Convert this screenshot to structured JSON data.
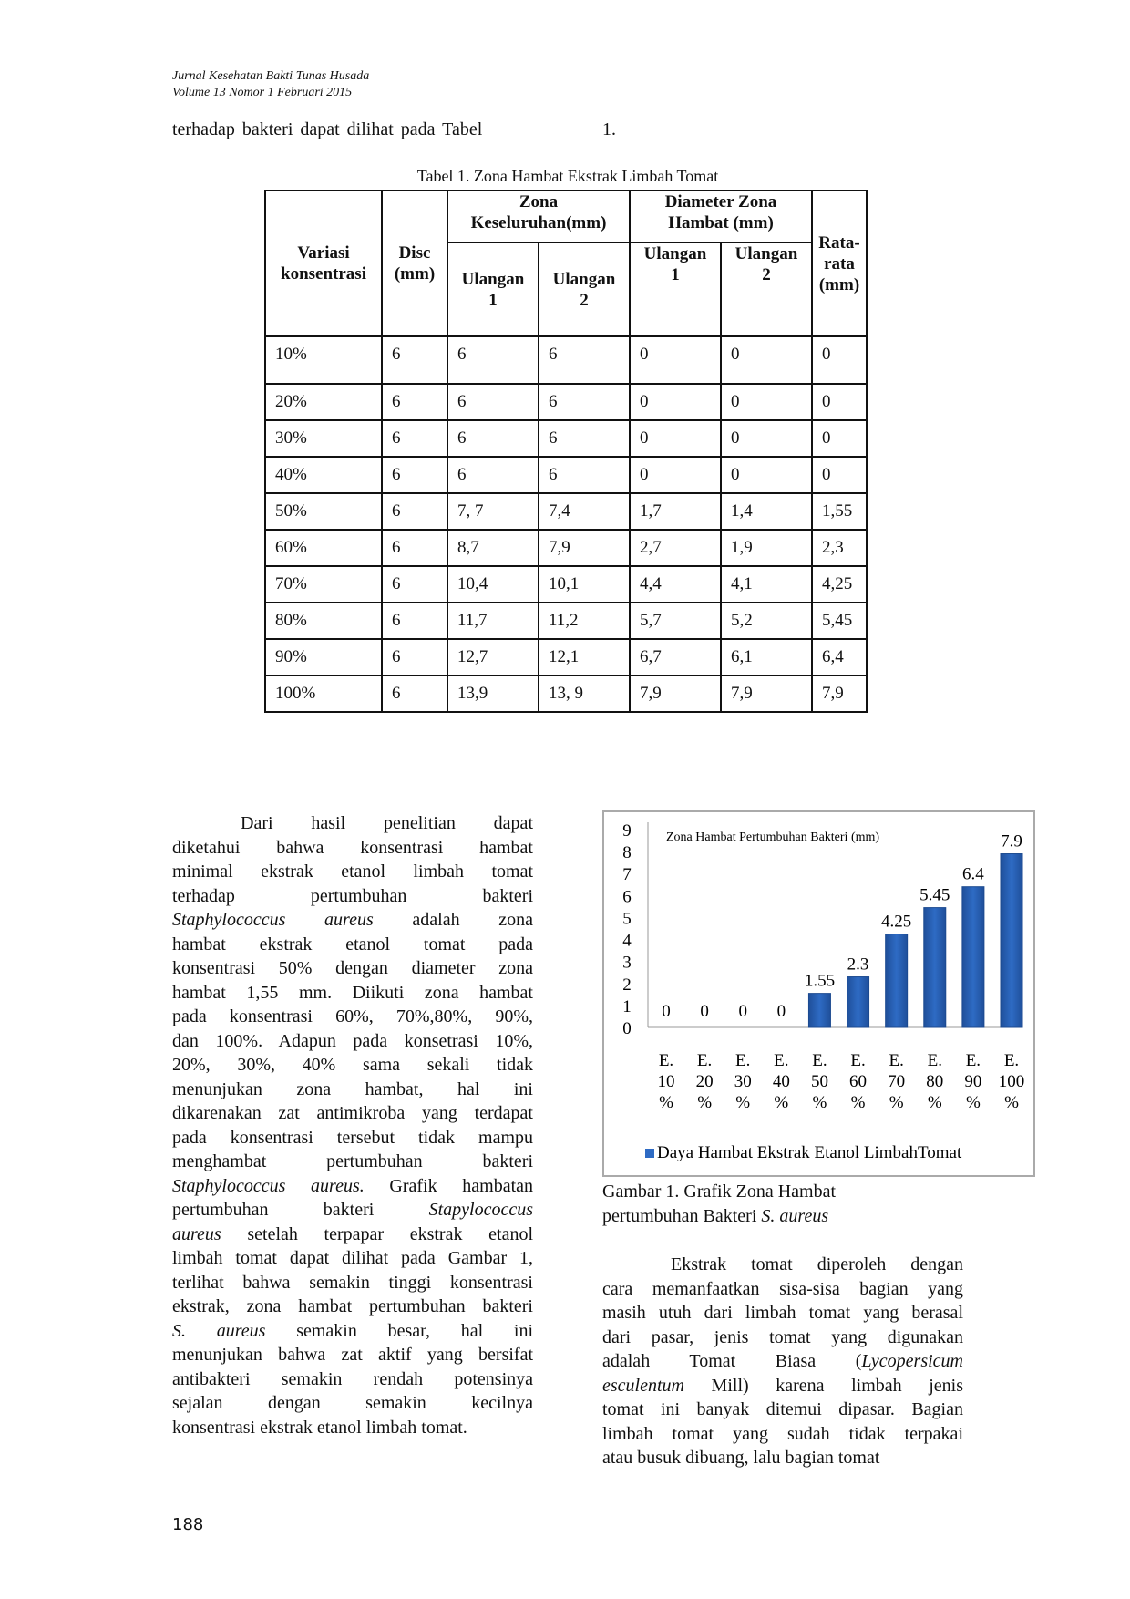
{
  "header": {
    "journal": "Jurnal Kesehatan Bakti Tunas Husada",
    "volume": "Volume 13 Nomor 1 Februari 2015"
  },
  "intro_line": {
    "text": "terhadap bakteri dapat dilihat pada Tabel",
    "ref": "1."
  },
  "table": {
    "caption": "Tabel 1. Zona Hambat Ekstrak Limbah Tomat",
    "headers": {
      "variasi": "Variasi konsentrasi",
      "disc": "Disc (mm)",
      "zona": "Zona Keseluruhan(mm)",
      "diameter": "Diameter Zona Hambat (mm)",
      "ulangan1": "Ulangan 1",
      "ulangan2": "Ulangan 2",
      "rata": "Rata-rata (mm)"
    },
    "rows": [
      [
        "10%",
        "6",
        "6",
        "6",
        "0",
        "0",
        "0"
      ],
      [
        "20%",
        "6",
        "6",
        "6",
        "0",
        "0",
        "0"
      ],
      [
        "30%",
        "6",
        "6",
        "6",
        "0",
        "0",
        "0"
      ],
      [
        "40%",
        "6",
        "6",
        "6",
        "0",
        "0",
        "0"
      ],
      [
        "50%",
        "6",
        "7, 7",
        "7,4",
        "1,7",
        "1,4",
        "1,55"
      ],
      [
        "60%",
        "6",
        "8,7",
        "7,9",
        "2,7",
        "1,9",
        "2,3"
      ],
      [
        "70%",
        "6",
        "10,4",
        "10,1",
        "4,4",
        "4,1",
        "4,25"
      ],
      [
        "80%",
        "6",
        "11,7",
        "11,2",
        "5,7",
        "5,2",
        "5,45"
      ],
      [
        "90%",
        "6",
        "12,7",
        "12,1",
        "6,7",
        "6,1",
        "6,4"
      ],
      [
        "100%",
        "6",
        "13,9",
        "13, 9",
        "7,9",
        "7,9",
        "7,9"
      ]
    ]
  },
  "left_column": [
    [
      {
        "t": "Dari hasil penelitian dapat"
      }
    ],
    [
      {
        "t": "diketahui bahwa konsentrasi hambat"
      }
    ],
    [
      {
        "t": "minimal ekstrak etanol limbah tomat"
      }
    ],
    [
      {
        "t": "terhadap pertumbuhan bakteri"
      }
    ],
    [
      {
        "t": "Staphylococcus aureus",
        "i": true
      },
      {
        "t": " adalah zona"
      }
    ],
    [
      {
        "t": "hambat ekstrak etanol tomat pada"
      }
    ],
    [
      {
        "t": "konsentrasi 50% dengan diameter zona"
      }
    ],
    [
      {
        "t": "hambat 1,55 mm. Diikuti zona hambat"
      }
    ],
    [
      {
        "t": "pada konsentrasi 60%, 70%,80%, 90%,"
      }
    ],
    [
      {
        "t": "dan 100%. Adapun pada konsetrasi 10%,"
      }
    ],
    [
      {
        "t": "20%, 30%, 40% sama sekali tidak"
      }
    ],
    [
      {
        "t": "menunjukan zona hambat, hal ini"
      }
    ],
    [
      {
        "t": "dikarenakan zat antimikroba yang terdapat"
      }
    ],
    [
      {
        "t": "pada konsentrasi tersebut tidak mampu"
      }
    ],
    [
      {
        "t": "menghambat pertumbuhan bakteri"
      }
    ],
    [
      {
        "t": "Staphylococcus aureus.",
        "i": true
      },
      {
        "t": " Grafik hambatan"
      }
    ],
    [
      {
        "t": "pertumbuhan bakteri "
      },
      {
        "t": "Stapylococcus",
        "i": true
      }
    ],
    [
      {
        "t": "aureus",
        "i": true
      },
      {
        "t": " setelah terpapar ekstrak etanol"
      }
    ],
    [
      {
        "t": "limbah tomat dapat dilihat pada Gambar 1,"
      }
    ],
    [
      {
        "t": "terlihat bahwa semakin tinggi konsentrasi"
      }
    ],
    [
      {
        "t": "ekstrak, zona hambat pertumbuhan bakteri"
      }
    ],
    [
      {
        "t": "S. aureus",
        "i": true
      },
      {
        "t": " semakin besar, hal ini"
      }
    ],
    [
      {
        "t": "menunjukan bahwa zat aktif yang bersifat"
      }
    ],
    [
      {
        "t": "antibakteri semakin rendah potensinya"
      }
    ],
    [
      {
        "t": "sejalan dengan semakin kecilnya"
      }
    ],
    [
      {
        "t": "konsentrasi ekstrak etanol limbah tomat."
      }
    ]
  ],
  "figure_caption": [
    [
      {
        "t": "Gambar 1. Grafik Zona Hambat"
      }
    ],
    [
      {
        "t": "pertumbuhan Bakteri "
      },
      {
        "t": "S. aureus",
        "i": true
      }
    ]
  ],
  "right_column": [
    [
      {
        "t": "Ekstrak tomat diperoleh dengan"
      }
    ],
    [
      {
        "t": "cara memanfaatkan sisa-sisa bagian yang"
      }
    ],
    [
      {
        "t": "masih utuh dari limbah tomat yang berasal"
      }
    ],
    [
      {
        "t": "dari pasar, jenis tomat yang digunakan"
      }
    ],
    [
      {
        "t": "adalah Tomat Biasa ("
      },
      {
        "t": "Lycopersicum",
        "i": true
      }
    ],
    [
      {
        "t": "esculentum",
        "i": true
      },
      {
        "t": " Mill) karena limbah jenis"
      }
    ],
    [
      {
        "t": "tomat ini banyak ditemui dipasar. Bagian"
      }
    ],
    [
      {
        "t": "limbah tomat yang sudah tidak terpakai"
      }
    ],
    [
      {
        "t": "atau busuk dibuang, lalu bagian tomat"
      }
    ]
  ],
  "page_number": "188",
  "chart_data": {
    "type": "bar",
    "title": "Zona Hambat Pertumbuhan Bakteri (mm)",
    "categories": [
      "E. 10 %",
      "E. 20 %",
      "E. 30 %",
      "E. 40 %",
      "E. 50 %",
      "E. 60 %",
      "E. 70 %",
      "E. 80 %",
      "E. 90 %",
      "E. 100 %"
    ],
    "series": [
      {
        "name": "Daya Hambat Ekstrak Etanol LimbahTomat",
        "values": [
          0,
          0,
          0,
          0,
          1.55,
          2.3,
          4.25,
          5.45,
          6.4,
          7.9
        ]
      }
    ],
    "data_labels": [
      "0",
      "0",
      "0",
      "0",
      "1.55",
      "2.3",
      "4.25",
      "5.45",
      "6.4",
      "7.9"
    ],
    "yticks": [
      "0",
      "1",
      "2",
      "3",
      "4",
      "5",
      "6",
      "7",
      "8",
      "9"
    ],
    "ylim": [
      0,
      9
    ],
    "grid": false,
    "legend": "bottom",
    "bar_color": "#2e6bc4"
  }
}
